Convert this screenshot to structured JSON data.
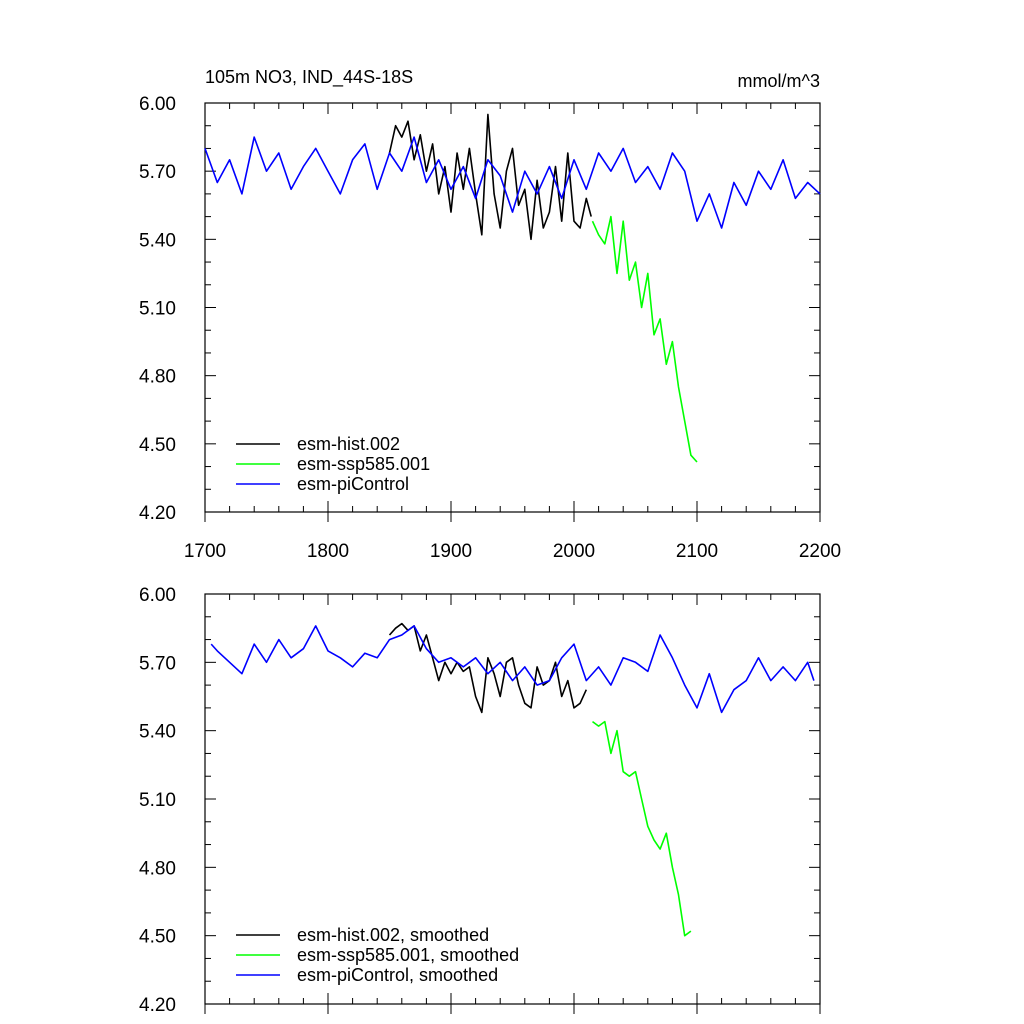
{
  "chart_data": [
    {
      "type": "line",
      "title": "105m NO3, IND_44S-18S",
      "units": "mmol/m^3",
      "xlim": [
        1700,
        2200
      ],
      "ylim": [
        4.2,
        6.0
      ],
      "xticks": [
        "1700",
        "1800",
        "1900",
        "2000",
        "2100",
        "2200"
      ],
      "yticks": [
        "4.20",
        "4.50",
        "4.80",
        "5.10",
        "5.40",
        "5.70",
        "6.00"
      ],
      "legend_position": "bottom-left",
      "series": [
        {
          "name": "esm-hist.002",
          "color": "#000000",
          "x": [
            1850,
            1855,
            1860,
            1865,
            1870,
            1875,
            1880,
            1885,
            1890,
            1895,
            1900,
            1905,
            1910,
            1915,
            1920,
            1925,
            1930,
            1935,
            1940,
            1945,
            1950,
            1955,
            1960,
            1965,
            1970,
            1975,
            1980,
            1985,
            1990,
            1995,
            2000,
            2005,
            2010,
            2014
          ],
          "y": [
            5.78,
            5.9,
            5.85,
            5.92,
            5.75,
            5.86,
            5.7,
            5.82,
            5.6,
            5.72,
            5.52,
            5.78,
            5.62,
            5.8,
            5.6,
            5.42,
            5.95,
            5.6,
            5.45,
            5.7,
            5.8,
            5.55,
            5.62,
            5.4,
            5.66,
            5.45,
            5.52,
            5.72,
            5.48,
            5.78,
            5.48,
            5.45,
            5.58,
            5.5
          ]
        },
        {
          "name": "esm-ssp585.001",
          "color": "#00ff00",
          "x": [
            2015,
            2020,
            2025,
            2030,
            2035,
            2040,
            2045,
            2050,
            2055,
            2060,
            2065,
            2070,
            2075,
            2080,
            2085,
            2090,
            2095,
            2100
          ],
          "y": [
            5.48,
            5.42,
            5.38,
            5.5,
            5.25,
            5.48,
            5.22,
            5.3,
            5.1,
            5.25,
            4.98,
            5.05,
            4.85,
            4.95,
            4.75,
            4.6,
            4.45,
            4.42
          ]
        },
        {
          "name": "esm-piControl",
          "color": "#0000ff",
          "x": [
            1700,
            1710,
            1720,
            1730,
            1740,
            1750,
            1760,
            1770,
            1780,
            1790,
            1800,
            1810,
            1820,
            1830,
            1840,
            1850,
            1860,
            1870,
            1880,
            1890,
            1900,
            1910,
            1920,
            1930,
            1940,
            1950,
            1960,
            1970,
            1980,
            1990,
            2000,
            2010,
            2020,
            2030,
            2040,
            2050,
            2060,
            2070,
            2080,
            2090,
            2100,
            2110,
            2120,
            2130,
            2140,
            2150,
            2160,
            2170,
            2180,
            2190,
            2200
          ],
          "y": [
            5.8,
            5.65,
            5.75,
            5.6,
            5.85,
            5.7,
            5.78,
            5.62,
            5.72,
            5.8,
            5.7,
            5.6,
            5.75,
            5.82,
            5.62,
            5.78,
            5.7,
            5.85,
            5.65,
            5.75,
            5.62,
            5.72,
            5.58,
            5.75,
            5.68,
            5.52,
            5.7,
            5.6,
            5.72,
            5.58,
            5.75,
            5.62,
            5.78,
            5.7,
            5.8,
            5.65,
            5.72,
            5.62,
            5.78,
            5.7,
            5.48,
            5.6,
            5.45,
            5.65,
            5.55,
            5.7,
            5.62,
            5.75,
            5.58,
            5.65,
            5.6
          ]
        }
      ]
    },
    {
      "type": "line",
      "title": "",
      "xlim": [
        1700,
        2200
      ],
      "ylim": [
        4.2,
        6.0
      ],
      "yticks": [
        "4.20",
        "4.50",
        "4.80",
        "5.10",
        "5.40",
        "5.70",
        "6.00"
      ],
      "legend_position": "bottom-left",
      "series": [
        {
          "name": "esm-hist.002, smoothed",
          "color": "#000000",
          "x": [
            1850,
            1855,
            1860,
            1865,
            1870,
            1875,
            1880,
            1885,
            1890,
            1895,
            1900,
            1905,
            1910,
            1915,
            1920,
            1925,
            1930,
            1935,
            1940,
            1945,
            1950,
            1955,
            1960,
            1965,
            1970,
            1975,
            1980,
            1985,
            1990,
            1995,
            2000,
            2005,
            2010
          ],
          "y": [
            5.82,
            5.85,
            5.87,
            5.84,
            5.86,
            5.75,
            5.82,
            5.72,
            5.62,
            5.7,
            5.65,
            5.7,
            5.66,
            5.68,
            5.55,
            5.48,
            5.72,
            5.65,
            5.55,
            5.7,
            5.72,
            5.6,
            5.52,
            5.5,
            5.68,
            5.6,
            5.62,
            5.7,
            5.55,
            5.62,
            5.5,
            5.52,
            5.58
          ]
        },
        {
          "name": "esm-ssp585.001, smoothed",
          "color": "#00ff00",
          "x": [
            2015,
            2020,
            2025,
            2030,
            2035,
            2040,
            2045,
            2050,
            2055,
            2060,
            2065,
            2070,
            2075,
            2080,
            2085,
            2090,
            2095
          ],
          "y": [
            5.44,
            5.42,
            5.44,
            5.3,
            5.4,
            5.22,
            5.2,
            5.22,
            5.1,
            4.98,
            4.92,
            4.88,
            4.95,
            4.8,
            4.68,
            4.5,
            4.52
          ]
        },
        {
          "name": "esm-piControl, smoothed",
          "color": "#0000ff",
          "x": [
            1705,
            1710,
            1720,
            1730,
            1740,
            1750,
            1760,
            1770,
            1780,
            1790,
            1800,
            1810,
            1820,
            1830,
            1840,
            1850,
            1860,
            1870,
            1880,
            1890,
            1900,
            1910,
            1920,
            1930,
            1940,
            1950,
            1960,
            1970,
            1980,
            1990,
            2000,
            2010,
            2020,
            2030,
            2040,
            2050,
            2060,
            2070,
            2080,
            2090,
            2100,
            2110,
            2120,
            2130,
            2140,
            2150,
            2160,
            2170,
            2180,
            2190,
            2195
          ],
          "y": [
            5.78,
            5.75,
            5.7,
            5.65,
            5.78,
            5.7,
            5.8,
            5.72,
            5.76,
            5.86,
            5.75,
            5.72,
            5.68,
            5.74,
            5.72,
            5.8,
            5.82,
            5.86,
            5.76,
            5.7,
            5.72,
            5.68,
            5.72,
            5.65,
            5.7,
            5.62,
            5.68,
            5.6,
            5.62,
            5.72,
            5.78,
            5.62,
            5.68,
            5.6,
            5.72,
            5.7,
            5.66,
            5.82,
            5.72,
            5.6,
            5.5,
            5.65,
            5.48,
            5.58,
            5.62,
            5.72,
            5.62,
            5.68,
            5.62,
            5.7,
            5.62
          ]
        }
      ]
    }
  ]
}
